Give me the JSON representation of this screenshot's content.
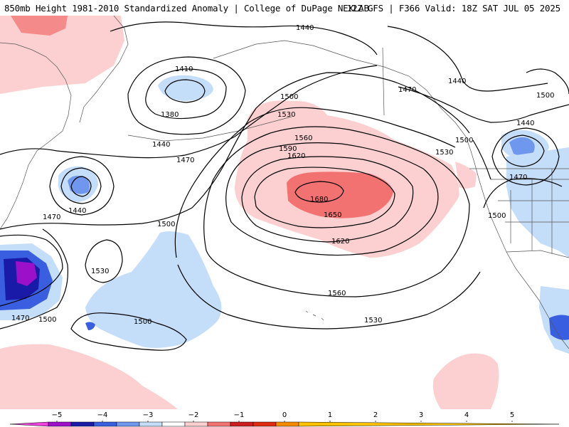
{
  "header": {
    "left": "850mb Height 1981-2010 Standardized Anomaly | College of DuPage NEXLAB",
    "right": "12Z GFS | F366 Valid: 18Z SAT JUL 05 2025"
  },
  "contour_labels": {
    "l1440a": "1440",
    "l1410": "1410",
    "l1380": "1380",
    "l1440b": "1440",
    "l1470a": "1470",
    "l1440c": "1440",
    "l1470b": "1470",
    "l1500a": "1500",
    "l1530a": "1530",
    "l1470c": "1470",
    "l1500b": "1500",
    "l1500c": "1500",
    "l1500d": "1500",
    "l1530b": "1530",
    "l1560a": "1560",
    "l1590": "1590",
    "l1620a": "1620",
    "l1680": "1680",
    "l1650": "1650",
    "l1620b": "1620",
    "l1560b": "1560",
    "l1530c": "1530",
    "l1470d": "1470",
    "l1440d": "1440",
    "l1500e": "1500",
    "l1500f": "1500",
    "l1530d": "1530",
    "l1440e": "1440",
    "l1470e": "1470",
    "l1500g": "1500"
  },
  "legend": {
    "ticks": [
      "−5",
      "−4",
      "−3",
      "−2",
      "−1",
      "0",
      "1",
      "2",
      "3",
      "4",
      "5"
    ],
    "colors": [
      "#ee44dd",
      "#9d10c9",
      "#1a1aa8",
      "#3a5ee0",
      "#6f97ee",
      "#c4ddf8",
      "#ffffff",
      "#fbcfcf",
      "#f27272",
      "#cc1e1e",
      "#dd2a10",
      "#f58a00",
      "#ffc200"
    ]
  }
}
